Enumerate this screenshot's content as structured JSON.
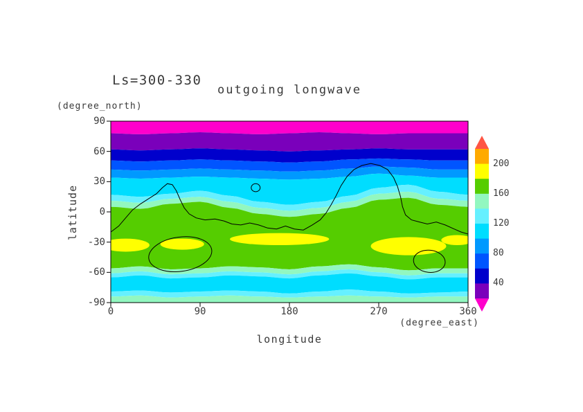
{
  "chart_data": {
    "type": "filled-contour-map",
    "title": "outgoing longwave",
    "subtitle": "Ls=300-330",
    "xlabel": "longitude",
    "xunit": "(degree_east)",
    "ylabel": "latitude",
    "yunit": "(degree_north)",
    "xlim": [
      0,
      360
    ],
    "ylim": [
      -90,
      90
    ],
    "x_ticks": [
      0,
      90,
      180,
      270,
      360
    ],
    "y_ticks": [
      90,
      60,
      30,
      0,
      -30,
      -60,
      -90
    ],
    "contour_interval": 20,
    "colorbar_labels": [
      200,
      160,
      120,
      80,
      40
    ],
    "levels": [
      20,
      40,
      60,
      80,
      100,
      120,
      140,
      160,
      180,
      200,
      220
    ],
    "palette": {
      "magenta": "#ff00cc",
      "purple": "#7a00bb",
      "darkblue": "#0000cc",
      "blue": "#0055ff",
      "lightblue": "#0099ff",
      "cyan": "#00ddff",
      "palecyan": "#66f0ff",
      "mint": "#92f7c0",
      "green": "#55cd00",
      "yellow": "#ffff00",
      "orange": "#ffaa00",
      "red": "#ff5544"
    },
    "colorbar_bands_top_to_bottom": [
      "orange",
      "yellow",
      "green",
      "mint",
      "palecyan",
      "cyan",
      "lightblue",
      "blue",
      "darkblue",
      "purple"
    ],
    "colorbar_arrow_top": "red",
    "colorbar_arrow_bottom": "magenta",
    "band_lons": [
      0,
      30,
      60,
      90,
      120,
      150,
      180,
      210,
      240,
      270,
      300,
      330,
      360
    ],
    "bands_north_to_south": [
      {
        "color": "magenta",
        "south": [
          78,
          77,
          78,
          79,
          78,
          77,
          78,
          79,
          78,
          77,
          78,
          78,
          78
        ]
      },
      {
        "color": "purple",
        "south": [
          62,
          61,
          62,
          63,
          62,
          61,
          60,
          61,
          62,
          63,
          62,
          62,
          62
        ]
      },
      {
        "color": "darkblue",
        "south": [
          51,
          50,
          51,
          52,
          51,
          50,
          49,
          50,
          52,
          53,
          52,
          51,
          51
        ]
      },
      {
        "color": "blue",
        "south": [
          42,
          41,
          42,
          43,
          42,
          41,
          40,
          41,
          43,
          45,
          44,
          42,
          42
        ]
      },
      {
        "color": "lightblue",
        "south": [
          34,
          33,
          34,
          35,
          34,
          33,
          32,
          33,
          35,
          38,
          36,
          34,
          34
        ]
      },
      {
        "color": "cyan",
        "south": [
          17,
          15,
          18,
          21,
          16,
          10,
          7,
          10,
          16,
          24,
          27,
          20,
          17
        ]
      },
      {
        "color": "palecyan",
        "south": [
          11,
          9,
          13,
          15,
          10,
          4,
          1,
          4,
          10,
          18,
          20,
          13,
          11
        ]
      },
      {
        "color": "mint",
        "south": [
          5,
          3,
          8,
          10,
          4,
          -2,
          -5,
          -2,
          4,
          12,
          14,
          7,
          5
        ]
      },
      {
        "color": "green",
        "south": [
          -56,
          -54,
          -57,
          -56,
          -54,
          -55,
          -57,
          -54,
          -52,
          -55,
          -58,
          -56,
          -56
        ]
      },
      {
        "color": "mint",
        "south": [
          -61,
          -59,
          -62,
          -61,
          -59,
          -60,
          -62,
          -59,
          -57,
          -60,
          -63,
          -61,
          -61
        ]
      },
      {
        "color": "palecyan",
        "south": [
          -65,
          -63,
          -66,
          -65,
          -63,
          -64,
          -66,
          -63,
          -61,
          -64,
          -67,
          -65,
          -65
        ]
      },
      {
        "color": "cyan",
        "south": [
          -79,
          -78,
          -80,
          -79,
          -78,
          -79,
          -81,
          -79,
          -77,
          -79,
          -81,
          -80,
          -79
        ]
      },
      {
        "color": "palecyan",
        "south": [
          -84,
          -83,
          -85,
          -84,
          -83,
          -84,
          -85,
          -84,
          -83,
          -84,
          -85,
          -84,
          -84
        ]
      },
      {
        "color": "mint",
        "south": [
          -90,
          -90,
          -90,
          -90,
          -90,
          -90,
          -90,
          -90,
          -90,
          -90,
          -90,
          -90,
          -90
        ]
      }
    ],
    "yellow_patches": [
      [
        15,
        -33,
        24,
        6.5
      ],
      [
        72,
        -32,
        22,
        5.5
      ],
      [
        170,
        -27,
        50,
        6
      ],
      [
        300,
        -34,
        38,
        9
      ],
      [
        349,
        -28,
        16,
        5
      ]
    ],
    "outlines": {
      "main_line": [
        [
          0,
          -20
        ],
        [
          8,
          -14
        ],
        [
          15,
          -6
        ],
        [
          22,
          2
        ],
        [
          30,
          8
        ],
        [
          38,
          13
        ],
        [
          46,
          18
        ],
        [
          52,
          24
        ],
        [
          57,
          28
        ],
        [
          62,
          27
        ],
        [
          66,
          21
        ],
        [
          70,
          12
        ],
        [
          74,
          4
        ],
        [
          79,
          -2
        ],
        [
          86,
          -6
        ],
        [
          95,
          -8
        ],
        [
          105,
          -7
        ],
        [
          114,
          -9
        ],
        [
          122,
          -12
        ],
        [
          131,
          -13
        ],
        [
          140,
          -11
        ],
        [
          149,
          -13
        ],
        [
          158,
          -16
        ],
        [
          167,
          -17
        ],
        [
          176,
          -14
        ],
        [
          185,
          -17
        ],
        [
          194,
          -18
        ],
        [
          203,
          -13
        ],
        [
          211,
          -8
        ],
        [
          217,
          -1
        ],
        [
          222,
          7
        ],
        [
          227,
          16
        ],
        [
          232,
          26
        ],
        [
          238,
          35
        ],
        [
          245,
          42
        ],
        [
          253,
          46
        ],
        [
          262,
          48
        ],
        [
          271,
          46
        ],
        [
          279,
          42
        ],
        [
          285,
          34
        ],
        [
          289,
          25
        ],
        [
          292,
          15
        ],
        [
          294,
          5
        ],
        [
          297,
          -3
        ],
        [
          303,
          -8
        ],
        [
          311,
          -10
        ],
        [
          319,
          -12
        ],
        [
          328,
          -10
        ],
        [
          337,
          -13
        ],
        [
          346,
          -17
        ],
        [
          353,
          -20
        ],
        [
          360,
          -22
        ]
      ],
      "small_circle": [
        146,
        24,
        4.5,
        4,
        0
      ],
      "big_oval": [
        70,
        -42,
        32,
        17,
        -8
      ],
      "south_blob": [
        321,
        -49,
        16,
        11,
        6
      ]
    }
  }
}
